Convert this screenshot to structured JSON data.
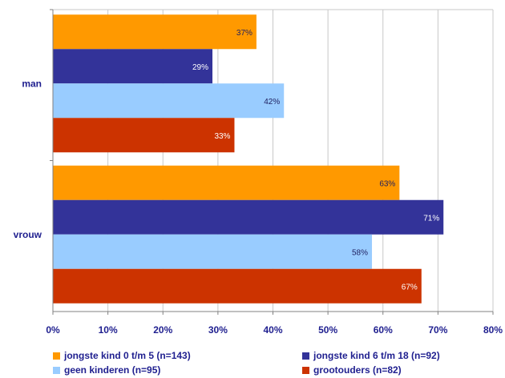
{
  "chart_data": {
    "type": "bar",
    "orientation": "horizontal",
    "categories": [
      "man",
      "vrouw"
    ],
    "series": [
      {
        "name": "jongste kind 0 t/m 5 (n=143)",
        "values": [
          37,
          63
        ],
        "labels": [
          "37%",
          "63%"
        ],
        "color": "#ff9900",
        "label_color": "#1f1f5f"
      },
      {
        "name": "jongste kind 6 t/m 18 (n=92)",
        "values": [
          29,
          71
        ],
        "labels": [
          "29%",
          "71%"
        ],
        "color": "#333399",
        "label_color": "#ffffff"
      },
      {
        "name": "geen kinderen (n=95)",
        "values": [
          42,
          58
        ],
        "labels": [
          "42%",
          "58%"
        ],
        "color": "#99ccff",
        "label_color": "#1f1f5f"
      },
      {
        "name": "grootouders (n=82)",
        "values": [
          33,
          67
        ],
        "labels": [
          "33%",
          "67%"
        ],
        "color": "#cc3300",
        "label_color": "#ffffff"
      }
    ],
    "xlim": [
      0,
      80
    ],
    "xticks": [
      0,
      10,
      20,
      30,
      40,
      50,
      60,
      70,
      80
    ],
    "xtick_labels": [
      "0%",
      "10%",
      "20%",
      "30%",
      "40%",
      "50%",
      "60%",
      "70%",
      "80%"
    ],
    "grid": true,
    "legend_position": "bottom",
    "title": "",
    "xlabel": "",
    "ylabel": ""
  },
  "colors": {
    "grid": "#c8c8c8",
    "axis": "#808080",
    "text": "#1f1f8f"
  }
}
